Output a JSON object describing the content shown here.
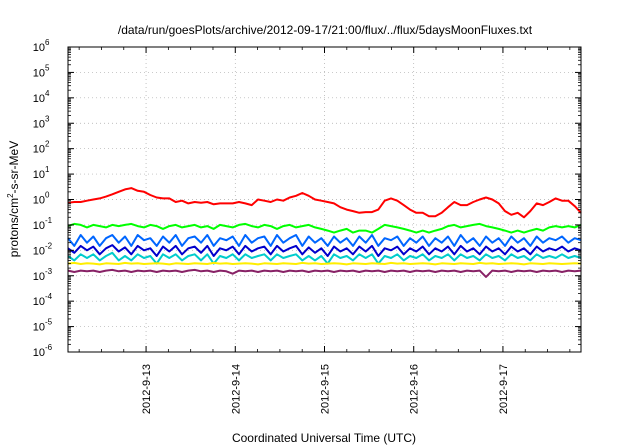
{
  "chart_data": {
    "type": "line",
    "title": "/data/run/goesPlots/archive/2012-09-17/21:00/flux/../flux/5daysMoonFluxes.txt",
    "xlabel": "Coordinated Universal Time (UTC)",
    "ylabel": "protons/cm2-s-sr-MeV",
    "ylabel_parts": {
      "pre": "protons/cm",
      "sup": "2",
      "post": "-s-sr-MeV"
    },
    "y_scale": "log",
    "ylim": [
      1e-06,
      1000000.0
    ],
    "x_range_days": [
      "2012-09-12",
      "2012-09-18"
    ],
    "xlim": [
      "2012-09-12 03:00",
      "2012-09-17 21:00"
    ],
    "x_tick_labels": [
      "2012-9-13",
      "2012-9-14",
      "2012-9-15",
      "2012-9-16",
      "2012-9-17"
    ],
    "y_ticks": [
      {
        "value": 1e-06,
        "base": "10",
        "exp": "-6"
      },
      {
        "value": 1e-05,
        "base": "10",
        "exp": "-5"
      },
      {
        "value": 0.0001,
        "base": "10",
        "exp": "-4"
      },
      {
        "value": 0.001,
        "base": "10",
        "exp": "-3"
      },
      {
        "value": 0.01,
        "base": "10",
        "exp": "-2"
      },
      {
        "value": 0.1,
        "base": "10",
        "exp": "-1"
      },
      {
        "value": 1,
        "base": "10",
        "exp": "0"
      },
      {
        "value": 10,
        "base": "10",
        "exp": "1"
      },
      {
        "value": 100,
        "base": "10",
        "exp": "2"
      },
      {
        "value": 1000,
        "base": "10",
        "exp": "3"
      },
      {
        "value": 10000,
        "base": "10",
        "exp": "4"
      },
      {
        "value": 100000,
        "base": "10",
        "exp": "5"
      },
      {
        "value": 1000000,
        "base": "10",
        "exp": "6"
      }
    ],
    "grid": true,
    "series": [
      {
        "color": "#ff0000",
        "values": [
          0.75,
          0.8,
          0.8,
          0.9,
          1.0,
          1.1,
          1.3,
          1.6,
          2.0,
          2.5,
          2.8,
          2.2,
          2.0,
          1.5,
          1.2,
          1.1,
          1.1,
          0.8,
          0.9,
          0.7,
          0.8,
          0.75,
          0.8,
          0.65,
          0.7,
          0.7,
          0.7,
          0.8,
          0.7,
          0.6,
          1.0,
          0.9,
          0.8,
          1.0,
          0.9,
          1.2,
          1.4,
          1.8,
          1.4,
          1.0,
          0.9,
          0.8,
          0.7,
          0.5,
          0.4,
          0.35,
          0.3,
          0.32,
          0.32,
          0.4,
          0.9,
          1.1,
          0.9,
          0.6,
          0.4,
          0.3,
          0.3,
          0.22,
          0.22,
          0.3,
          0.5,
          0.8,
          0.6,
          0.6,
          0.8,
          1.0,
          1.2,
          1.0,
          0.7,
          0.35,
          0.25,
          0.3,
          0.2,
          0.35,
          0.7,
          0.6,
          0.8,
          1.1,
          0.9,
          0.9,
          0.55,
          0.3
        ]
      },
      {
        "color": "#00ff00",
        "values": [
          0.09,
          0.11,
          0.1,
          0.08,
          0.1,
          0.09,
          0.08,
          0.1,
          0.09,
          0.1,
          0.11,
          0.09,
          0.08,
          0.1,
          0.09,
          0.07,
          0.09,
          0.1,
          0.08,
          0.09,
          0.1,
          0.08,
          0.09,
          0.07,
          0.1,
          0.09,
          0.08,
          0.1,
          0.11,
          0.09,
          0.08,
          0.1,
          0.09,
          0.07,
          0.09,
          0.1,
          0.08,
          0.09,
          0.1,
          0.08,
          0.07,
          0.06,
          0.05,
          0.06,
          0.07,
          0.05,
          0.06,
          0.06,
          0.05,
          0.07,
          0.1,
          0.09,
          0.08,
          0.07,
          0.06,
          0.05,
          0.06,
          0.05,
          0.06,
          0.07,
          0.09,
          0.1,
          0.08,
          0.09,
          0.1,
          0.11,
          0.09,
          0.08,
          0.07,
          0.06,
          0.05,
          0.06,
          0.05,
          0.06,
          0.07,
          0.06,
          0.08,
          0.09,
          0.08,
          0.09,
          0.08,
          0.1
        ]
      },
      {
        "color": "#0066ff",
        "values": [
          0.03,
          0.015,
          0.04,
          0.02,
          0.035,
          0.015,
          0.03,
          0.04,
          0.02,
          0.035,
          0.015,
          0.04,
          0.025,
          0.03,
          0.015,
          0.035,
          0.02,
          0.04,
          0.015,
          0.03,
          0.035,
          0.02,
          0.04,
          0.015,
          0.03,
          0.025,
          0.035,
          0.015,
          0.04,
          0.02,
          0.03,
          0.035,
          0.015,
          0.04,
          0.02,
          0.03,
          0.04,
          0.015,
          0.035,
          0.02,
          0.03,
          0.015,
          0.035,
          0.02,
          0.03,
          0.015,
          0.035,
          0.02,
          0.04,
          0.015,
          0.03,
          0.025,
          0.035,
          0.015,
          0.03,
          0.02,
          0.035,
          0.015,
          0.03,
          0.02,
          0.035,
          0.015,
          0.04,
          0.02,
          0.03,
          0.015,
          0.035,
          0.02,
          0.03,
          0.015,
          0.035,
          0.02,
          0.03,
          0.015,
          0.035,
          0.02,
          0.03,
          0.025,
          0.035,
          0.02,
          0.03,
          0.025
        ]
      },
      {
        "color": "#0000cc",
        "values": [
          0.012,
          0.008,
          0.015,
          0.01,
          0.014,
          0.007,
          0.012,
          0.016,
          0.009,
          0.013,
          0.007,
          0.015,
          0.01,
          0.012,
          0.006,
          0.014,
          0.009,
          0.015,
          0.007,
          0.012,
          0.014,
          0.008,
          0.015,
          0.006,
          0.012,
          0.01,
          0.014,
          0.007,
          0.015,
          0.009,
          0.012,
          0.014,
          0.007,
          0.015,
          0.009,
          0.012,
          0.015,
          0.007,
          0.013,
          0.008,
          0.012,
          0.006,
          0.014,
          0.009,
          0.012,
          0.007,
          0.014,
          0.009,
          0.015,
          0.006,
          0.012,
          0.01,
          0.014,
          0.007,
          0.012,
          0.009,
          0.014,
          0.007,
          0.012,
          0.009,
          0.014,
          0.007,
          0.015,
          0.009,
          0.012,
          0.007,
          0.014,
          0.009,
          0.012,
          0.007,
          0.014,
          0.009,
          0.012,
          0.007,
          0.014,
          0.009,
          0.012,
          0.01,
          0.014,
          0.009,
          0.012,
          0.01
        ]
      },
      {
        "color": "#00cccc",
        "values": [
          0.006,
          0.004,
          0.007,
          0.005,
          0.007,
          0.004,
          0.006,
          0.008,
          0.004,
          0.006,
          0.004,
          0.007,
          0.005,
          0.006,
          0.003,
          0.007,
          0.005,
          0.007,
          0.004,
          0.006,
          0.007,
          0.004,
          0.007,
          0.003,
          0.006,
          0.005,
          0.007,
          0.004,
          0.007,
          0.005,
          0.006,
          0.007,
          0.004,
          0.007,
          0.005,
          0.006,
          0.007,
          0.004,
          0.006,
          0.004,
          0.006,
          0.003,
          0.007,
          0.005,
          0.006,
          0.004,
          0.007,
          0.005,
          0.007,
          0.003,
          0.006,
          0.005,
          0.007,
          0.004,
          0.006,
          0.005,
          0.007,
          0.004,
          0.006,
          0.005,
          0.007,
          0.004,
          0.007,
          0.005,
          0.006,
          0.004,
          0.007,
          0.005,
          0.006,
          0.004,
          0.007,
          0.005,
          0.006,
          0.004,
          0.007,
          0.005,
          0.006,
          0.005,
          0.007,
          0.005,
          0.006,
          0.005
        ]
      },
      {
        "color": "#ffee00",
        "values": [
          0.003,
          0.0032,
          0.0029,
          0.0031,
          0.003,
          0.0028,
          0.0031,
          0.003,
          0.0029,
          0.0032,
          0.003,
          0.0031,
          0.0029,
          0.003,
          0.0031,
          0.003,
          0.0028,
          0.0031,
          0.003,
          0.0029,
          0.0031,
          0.003,
          0.0029,
          0.0032,
          0.003,
          0.0031,
          0.0029,
          0.003,
          0.0031,
          0.003,
          0.0028,
          0.0031,
          0.003,
          0.0029,
          0.0031,
          0.003,
          0.0029,
          0.0032,
          0.003,
          0.0031,
          0.0029,
          0.003,
          0.0031,
          0.003,
          0.0028,
          0.0031,
          0.003,
          0.0029,
          0.0031,
          0.003,
          0.0029,
          0.0032,
          0.003,
          0.0031,
          0.0029,
          0.003,
          0.0031,
          0.003,
          0.0028,
          0.0031,
          0.003,
          0.0029,
          0.0031,
          0.003,
          0.0029,
          0.0032,
          0.003,
          0.0031,
          0.0029,
          0.003,
          0.0031,
          0.003,
          0.0028,
          0.0031,
          0.003,
          0.0029,
          0.0031,
          0.003,
          0.0029,
          0.003,
          0.0031,
          0.003
        ]
      },
      {
        "color": "#882266",
        "values": [
          0.0016,
          0.0014,
          0.0016,
          0.0015,
          0.0016,
          0.0014,
          0.0016,
          0.0017,
          0.0015,
          0.0016,
          0.0014,
          0.0016,
          0.0015,
          0.0016,
          0.0014,
          0.0016,
          0.0015,
          0.0016,
          0.0014,
          0.0016,
          0.0017,
          0.0015,
          0.0016,
          0.0014,
          0.0016,
          0.0015,
          0.0012,
          0.0016,
          0.0015,
          0.0016,
          0.0014,
          0.0016,
          0.0015,
          0.0016,
          0.0014,
          0.0016,
          0.0015,
          0.0016,
          0.0014,
          0.0016,
          0.0015,
          0.0016,
          0.0014,
          0.0016,
          0.0015,
          0.0016,
          0.0014,
          0.0016,
          0.0015,
          0.0016,
          0.0014,
          0.0016,
          0.0015,
          0.0016,
          0.0014,
          0.0016,
          0.0015,
          0.0016,
          0.0014,
          0.0016,
          0.0015,
          0.0016,
          0.0014,
          0.0016,
          0.0015,
          0.0016,
          0.0009,
          0.0016,
          0.0015,
          0.0016,
          0.0014,
          0.0016,
          0.0015,
          0.0016,
          0.0014,
          0.0016,
          0.0015,
          0.0016,
          0.0014,
          0.0016,
          0.0015,
          0.0016
        ]
      }
    ]
  }
}
